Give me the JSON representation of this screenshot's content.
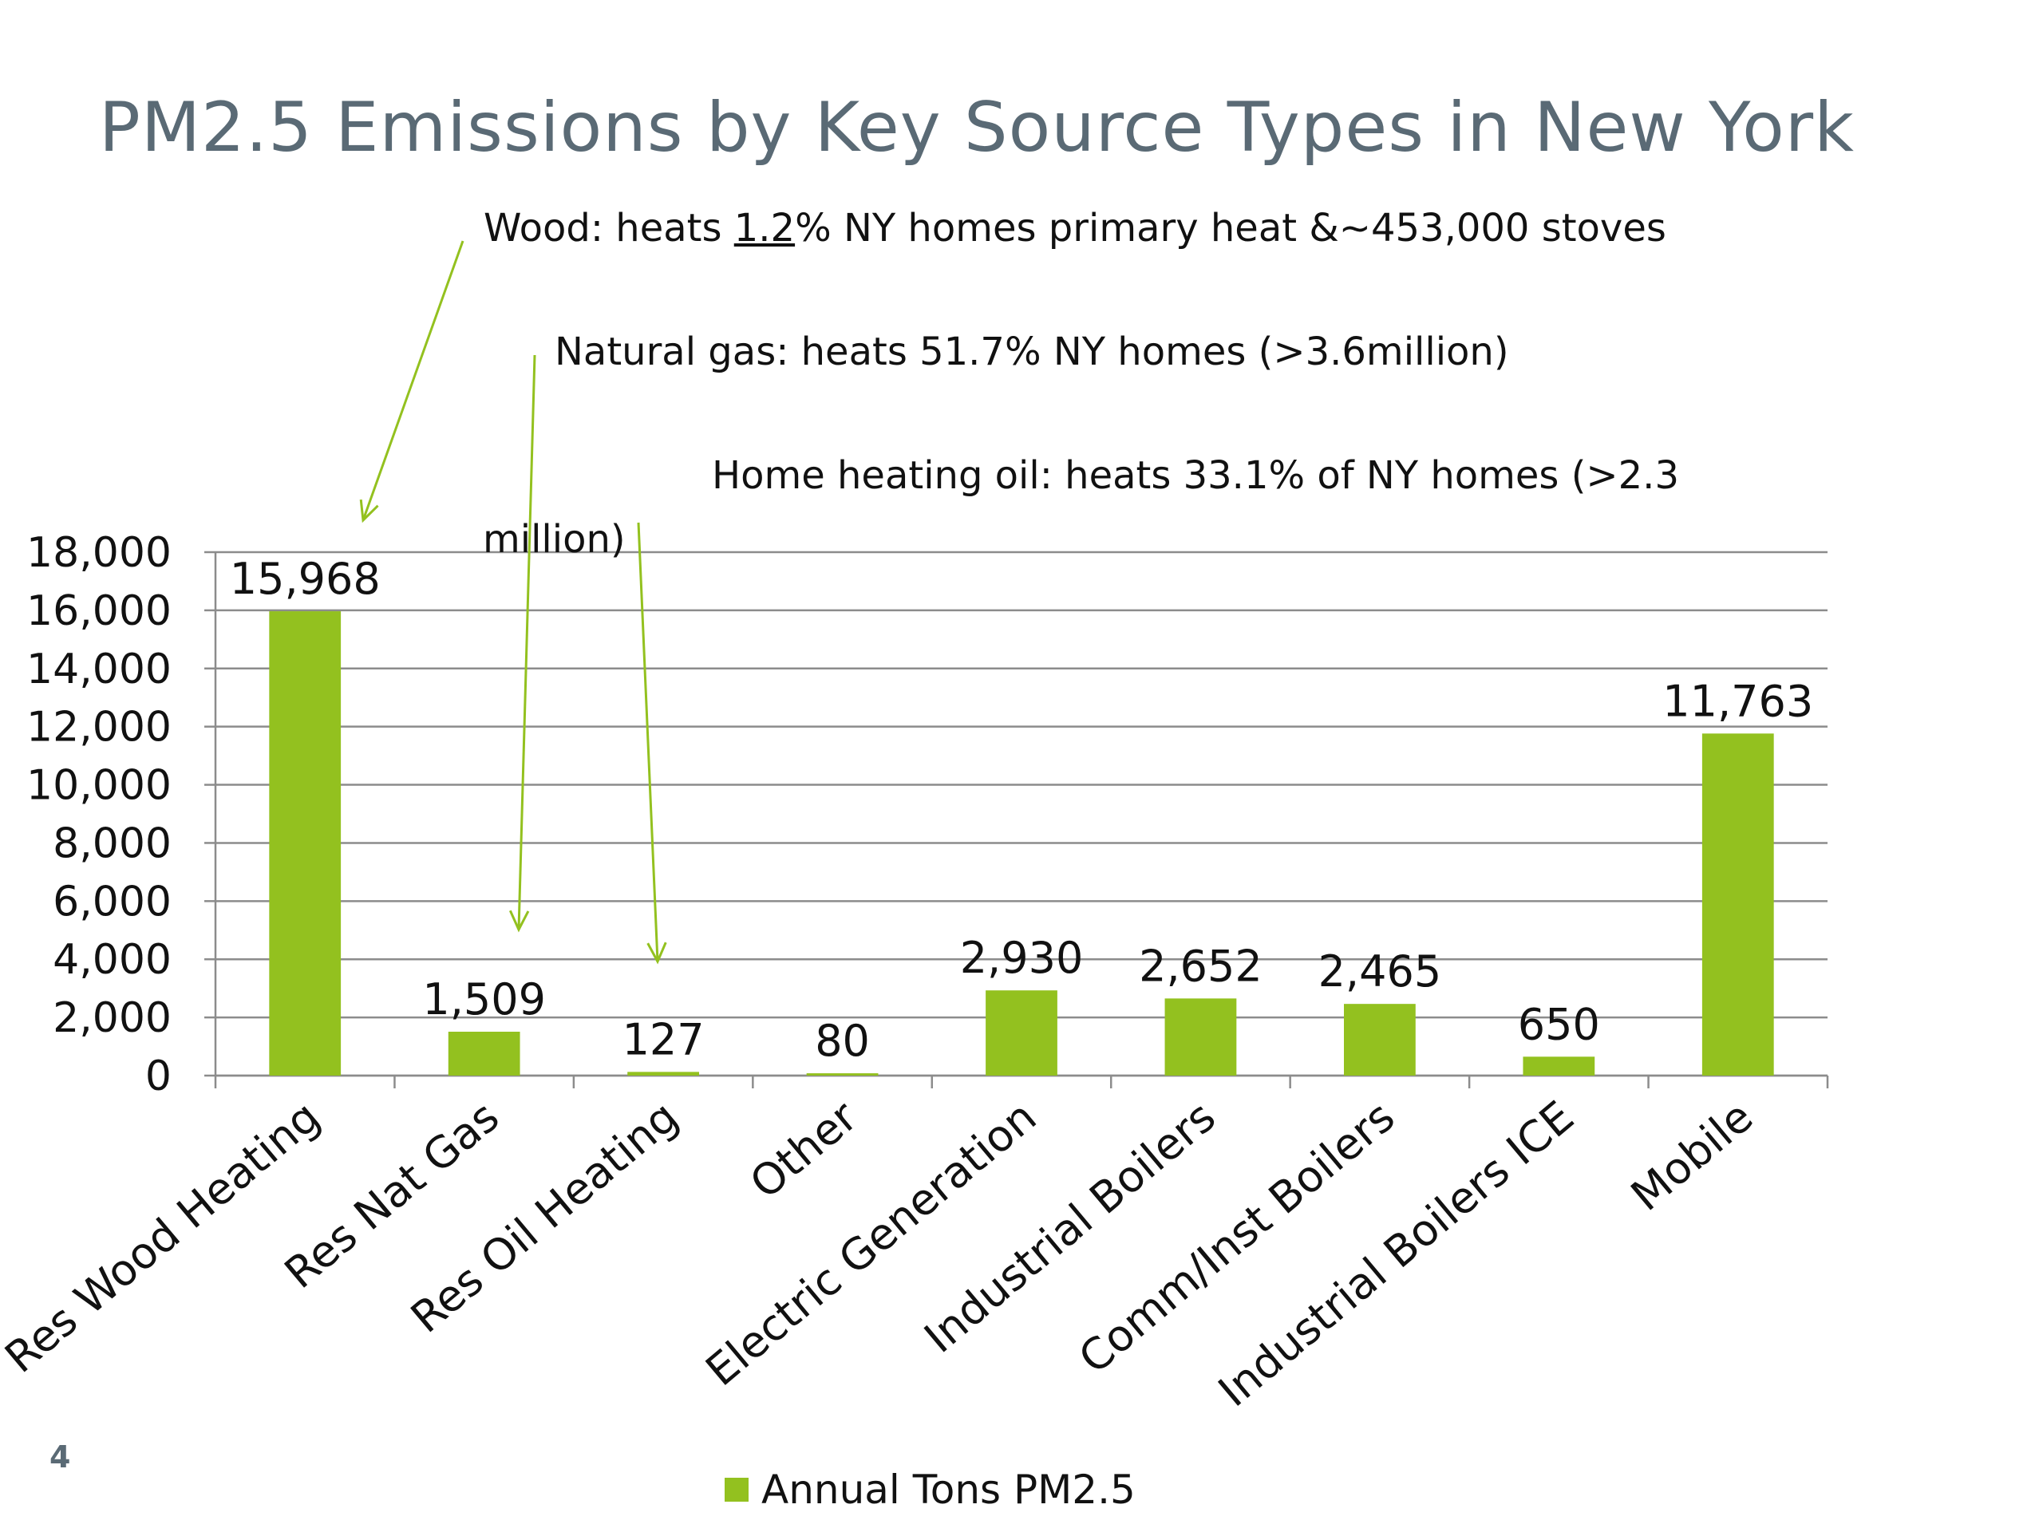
{
  "slide": {
    "title": "PM2.5 Emissions by Key Source Types in New York",
    "page_number": "4"
  },
  "annotations": {
    "wood": {
      "prefix": "Wood: heats ",
      "underlined": "1.2",
      "suffix": "% NY homes primary heat &~453,000 stoves"
    },
    "gas": "Natural gas:  heats 51.7% NY homes (>3.6million)",
    "oil_line1": "Home heating oil: heats 33.1% of NY homes (>2.3",
    "oil_line2": "million)"
  },
  "colors": {
    "bar": "#93c11f",
    "arrow": "#93c11f",
    "grid": "#8c8c8c",
    "title": "#5a6a75",
    "text": "#111111"
  },
  "chart_data": {
    "type": "bar",
    "title": "",
    "xlabel": "",
    "ylabel": "",
    "categories": [
      "Res Wood Heating",
      "Res Nat Gas",
      "Res Oil Heating",
      "Other",
      "Electric Generation",
      "Industrial Boilers",
      "Comm/Inst Boilers",
      "Industrial Boilers ICE",
      "Mobile"
    ],
    "series": [
      {
        "name": "Annual Tons PM2.5",
        "values": [
          15968,
          1509,
          127,
          80,
          2930,
          2652,
          2465,
          650,
          11763
        ],
        "labels": [
          "15,968",
          "1,509",
          "127",
          "80",
          "2,930",
          "2,652",
          "2,465",
          "650",
          "11,763"
        ]
      }
    ],
    "ylim": [
      0,
      18000
    ],
    "yticks": [
      0,
      2000,
      4000,
      6000,
      8000,
      10000,
      12000,
      14000,
      16000,
      18000
    ],
    "ytick_labels": [
      "0",
      "2,000",
      "4,000",
      "6,000",
      "8,000",
      "10,000",
      "12,000",
      "14,000",
      "16,000",
      "18,000"
    ],
    "grid": true,
    "legend": "bottom"
  }
}
